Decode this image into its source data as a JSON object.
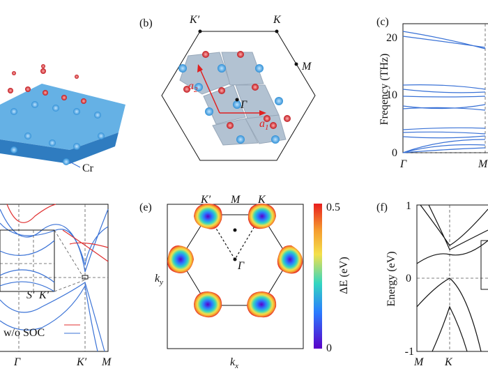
{
  "panel_a": {
    "atom_label": "Cr"
  },
  "panel_b": {
    "label": "(b)",
    "k_prime": "K′",
    "k": "K",
    "m": "M",
    "gamma": "Γ",
    "a1": {
      "symbol": "a",
      "sub": "1"
    },
    "a2": {
      "symbol": "a",
      "sub": "2"
    }
  },
  "panel_c": {
    "label": "(c)",
    "ylabel": "Freqency (THz)",
    "yticks": [
      "20",
      "10",
      "0"
    ],
    "xticks": [
      "Γ",
      "M"
    ]
  },
  "panel_d": {
    "xticks": [
      "Γ",
      "K′",
      "M"
    ],
    "inset_ticks": [
      "S′",
      "K′"
    ],
    "legend": "w/o SOC"
  },
  "panel_e": {
    "label": "(e)",
    "k_prime": "K′",
    "m": "M",
    "k": "K",
    "gamma": "Γ",
    "ky": {
      "symbol": "k",
      "sub": "y"
    },
    "kx": {
      "symbol": "k",
      "sub": "x"
    },
    "colorbar_label": "ΔE (eV)",
    "colorbar_max": "0.5",
    "colorbar_min": "0"
  },
  "panel_f": {
    "label": "(f)",
    "ylabel": "Energy (eV)",
    "yticks": [
      "1",
      "0",
      "-1"
    ],
    "xticks": [
      "M",
      "K"
    ]
  }
}
